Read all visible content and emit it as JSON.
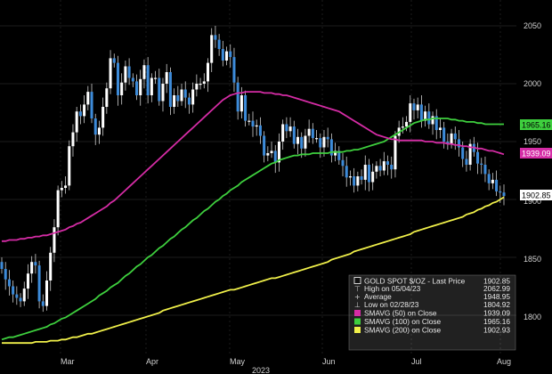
{
  "chart_data": {
    "type": "candlestick",
    "title": "GOLD SPOT $/OZ - Last Price",
    "xlabel": "2023",
    "ylim": [
      1780,
      2065
    ],
    "yticks": [
      1800,
      1850,
      1900,
      1950,
      2000,
      2050
    ],
    "month_labels": [
      "Mar",
      "Apr",
      "May",
      "Jun",
      "Jul",
      "Aug"
    ],
    "year_label": "2023",
    "grid": true,
    "legend_position": "bottom-right",
    "colors": {
      "background": "#000000",
      "grid": "#3a3a3a",
      "candle_up": "#ffffff",
      "candle_down": "#3d8bd9",
      "sma50": "#d52ca5",
      "sma100": "#3ecf3e",
      "sma200": "#f0f04a"
    },
    "series_values": {
      "close": "1902.85",
      "sma50": "1939.09",
      "sma100": "1965.16"
    },
    "candles_close": [
      1840,
      1831,
      1825,
      1818,
      1815,
      1812,
      1823,
      1836,
      1846,
      1843,
      1812,
      1808,
      1830,
      1854,
      1876,
      1908,
      1910,
      1912,
      1946,
      1958,
      1976,
      1972,
      1982,
      1993,
      1970,
      1956,
      1962,
      1980,
      1996,
      2022,
      2018,
      1990,
      2001,
      2015,
      2005,
      2002,
      1990,
      2004,
      2016,
      1990,
      2005,
      2005,
      1985,
      2000,
      2010,
      1980,
      1990,
      1985,
      1995,
      1988,
      1982,
      1995,
      2000,
      2000,
      2002,
      2018,
      2042,
      2038,
      2030,
      2020,
      2028,
      2023,
      2001,
      1976,
      1990,
      1968,
      1968,
      1963,
      1964,
      1955,
      1938,
      1940,
      1942,
      1932,
      1950,
      1965,
      1959,
      1963,
      1948,
      1954,
      1944,
      1955,
      1961,
      1953,
      1953,
      1945,
      1954,
      1952,
      1938,
      1942,
      1934,
      1929,
      1919,
      1920,
      1912,
      1920,
      1917,
      1930,
      1915,
      1924,
      1929,
      1925,
      1933,
      1930,
      1926,
      1955,
      1962,
      1963,
      1967,
      1983,
      1977,
      1982,
      1968,
      1976,
      1965,
      1972,
      1960,
      1962,
      1950,
      1948,
      1957,
      1952,
      1945,
      1935,
      1930,
      1948,
      1941,
      1931,
      1930,
      1922,
      1914,
      1917,
      1907,
      1906,
      1903
    ],
    "sma200": [
      1776,
      1776,
      1776,
      1776,
      1776,
      1776,
      1776,
      1776,
      1776,
      1777,
      1777,
      1777,
      1777,
      1778,
      1778,
      1778,
      1779,
      1779,
      1780,
      1781,
      1781,
      1782,
      1783,
      1784,
      1784,
      1785,
      1786,
      1787,
      1788,
      1789,
      1790,
      1791,
      1792,
      1793,
      1794,
      1795,
      1796,
      1797,
      1798,
      1799,
      1800,
      1801,
      1802,
      1804,
      1805,
      1806,
      1807,
      1808,
      1809,
      1810,
      1811,
      1812,
      1813,
      1814,
      1815,
      1816,
      1817,
      1818,
      1819,
      1820,
      1821,
      1822,
      1822,
      1823,
      1824,
      1825,
      1826,
      1827,
      1828,
      1829,
      1830,
      1831,
      1832,
      1832,
      1833,
      1834,
      1835,
      1836,
      1837,
      1838,
      1839,
      1840,
      1841,
      1842,
      1843,
      1844,
      1845,
      1846,
      1848,
      1849,
      1850,
      1851,
      1852,
      1853,
      1855,
      1856,
      1857,
      1858,
      1859,
      1860,
      1861,
      1862,
      1863,
      1864,
      1865,
      1866,
      1867,
      1868,
      1869,
      1870,
      1872,
      1873,
      1874,
      1875,
      1876,
      1877,
      1878,
      1879,
      1880,
      1881,
      1882,
      1883,
      1884,
      1885,
      1887,
      1888,
      1889,
      1891,
      1892,
      1894,
      1895,
      1897,
      1898,
      1900,
      1902
    ],
    "sma100": [
      1779,
      1780,
      1781,
      1781,
      1782,
      1783,
      1784,
      1785,
      1786,
      1787,
      1788,
      1789,
      1790,
      1792,
      1793,
      1795,
      1797,
      1798,
      1800,
      1802,
      1804,
      1806,
      1808,
      1810,
      1812,
      1814,
      1817,
      1819,
      1821,
      1824,
      1826,
      1828,
      1831,
      1834,
      1836,
      1839,
      1842,
      1844,
      1847,
      1850,
      1852,
      1855,
      1858,
      1860,
      1863,
      1866,
      1868,
      1871,
      1874,
      1876,
      1879,
      1882,
      1884,
      1887,
      1890,
      1892,
      1895,
      1898,
      1900,
      1903,
      1905,
      1908,
      1910,
      1912,
      1915,
      1917,
      1919,
      1921,
      1923,
      1925,
      1927,
      1929,
      1931,
      1932,
      1934,
      1935,
      1936,
      1937,
      1938,
      1938,
      1939,
      1939,
      1939,
      1940,
      1940,
      1940,
      1940,
      1940,
      1941,
      1941,
      1941,
      1941,
      1942,
      1942,
      1943,
      1943,
      1944,
      1945,
      1946,
      1947,
      1948,
      1949,
      1950,
      1952,
      1954,
      1956,
      1958,
      1960,
      1962,
      1964,
      1966,
      1967,
      1968,
      1969,
      1969,
      1970,
      1970,
      1970,
      1970,
      1970,
      1969,
      1969,
      1968,
      1968,
      1967,
      1967,
      1967,
      1966,
      1966,
      1965,
      1965,
      1965,
      1965,
      1965,
      1965
    ],
    "sma50": [
      1864,
      1864,
      1865,
      1865,
      1865,
      1866,
      1866,
      1867,
      1867,
      1868,
      1868,
      1869,
      1869,
      1870,
      1871,
      1872,
      1873,
      1874,
      1876,
      1877,
      1879,
      1880,
      1882,
      1884,
      1886,
      1888,
      1890,
      1892,
      1894,
      1897,
      1899,
      1902,
      1905,
      1908,
      1911,
      1914,
      1917,
      1920,
      1923,
      1926,
      1929,
      1932,
      1935,
      1938,
      1941,
      1944,
      1947,
      1950,
      1953,
      1956,
      1959,
      1962,
      1965,
      1968,
      1971,
      1974,
      1977,
      1980,
      1983,
      1986,
      1988,
      1990,
      1991,
      1992,
      1992,
      1993,
      1993,
      1993,
      1993,
      1993,
      1992,
      1992,
      1992,
      1991,
      1991,
      1990,
      1990,
      1989,
      1988,
      1987,
      1986,
      1985,
      1984,
      1983,
      1982,
      1981,
      1980,
      1979,
      1978,
      1977,
      1976,
      1974,
      1972,
      1970,
      1968,
      1966,
      1964,
      1962,
      1960,
      1958,
      1956,
      1955,
      1954,
      1953,
      1952,
      1952,
      1951,
      1951,
      1951,
      1951,
      1951,
      1951,
      1951,
      1950,
      1950,
      1950,
      1949,
      1949,
      1949,
      1948,
      1948,
      1947,
      1947,
      1946,
      1946,
      1945,
      1945,
      1944,
      1944,
      1943,
      1942,
      1942,
      1941,
      1940,
      1939
    ]
  },
  "axis": {
    "y_labels": [
      "2050",
      "2000",
      "1950",
      "1900",
      "1850",
      "1800"
    ],
    "last_price_tag": "1902.85",
    "sma50_tag": "1939.09",
    "sma100_tag": "1965.16"
  },
  "legend": {
    "title": "GOLD SPOT $/OZ - Last Price",
    "title_value": "1902.85",
    "high_label": "High on 05/04/23",
    "high_value": "2062.99",
    "avg_label": "Average",
    "avg_value": "1948.95",
    "low_label": "Low on 02/28/23",
    "low_value": "1804.92",
    "sma50_label": "SMAVG (50)  on Close",
    "sma50_value": "1939.09",
    "sma100_label": "SMAVG (100)  on Close",
    "sma100_value": "1965.16",
    "sma200_label": "SMAVG (200)  on Close",
    "sma200_value": "1902.93"
  }
}
